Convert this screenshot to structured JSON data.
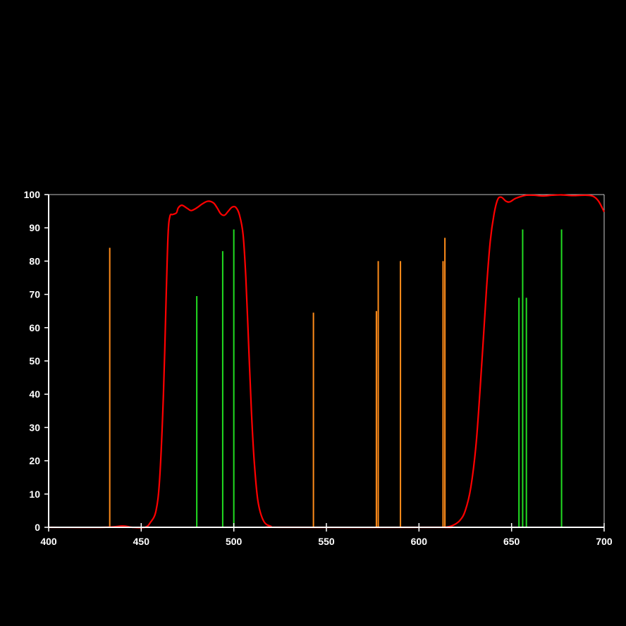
{
  "chart_data": {
    "type": "line",
    "title": "",
    "xlabel": "",
    "ylabel": "",
    "xlim": [
      400,
      700
    ],
    "ylim": [
      0,
      100
    ],
    "x_ticks": [
      "400",
      "450",
      "500",
      "550",
      "600",
      "650",
      "700"
    ],
    "y_ticks": [
      "0",
      "10",
      "20",
      "30",
      "40",
      "50",
      "60",
      "70",
      "80",
      "90",
      "100"
    ],
    "grid": false,
    "legend": "none",
    "colors": {
      "background": "#000000",
      "axes": "#ffffff",
      "transmission": "#ff0000",
      "orange_lines": "#ff8c1a",
      "green_lines": "#22dd22"
    },
    "series": [
      {
        "color": "red",
        "points": [
          [
            400,
            0
          ],
          [
            430,
            0
          ],
          [
            440,
            0.4
          ],
          [
            445,
            0
          ],
          [
            452,
            0
          ],
          [
            455,
            1.5
          ],
          [
            458,
            5
          ],
          [
            460,
            15
          ],
          [
            462,
            40
          ],
          [
            463.5,
            70
          ],
          [
            464.5,
            88
          ],
          [
            465.5,
            93.5
          ],
          [
            467,
            94
          ],
          [
            469,
            94.5
          ],
          [
            470,
            96
          ],
          [
            472,
            96.8
          ],
          [
            475,
            95.8
          ],
          [
            477,
            95.2
          ],
          [
            480,
            96
          ],
          [
            483,
            97.2
          ],
          [
            486,
            98
          ],
          [
            489,
            97.5
          ],
          [
            491,
            96
          ],
          [
            493,
            94.2
          ],
          [
            495,
            93.8
          ],
          [
            497,
            95
          ],
          [
            499,
            96.2
          ],
          [
            501,
            96.2
          ],
          [
            503,
            94
          ],
          [
            505,
            88
          ],
          [
            506.5,
            75
          ],
          [
            508,
            55
          ],
          [
            509.5,
            35
          ],
          [
            511,
            20
          ],
          [
            513,
            8
          ],
          [
            516,
            2
          ],
          [
            520,
            0.3
          ],
          [
            525,
            0
          ],
          [
            610,
            0
          ],
          [
            614,
            0
          ],
          [
            618,
            0.5
          ],
          [
            622,
            2
          ],
          [
            625,
            5
          ],
          [
            628,
            12
          ],
          [
            631,
            26
          ],
          [
            634,
            50
          ],
          [
            636.5,
            72
          ],
          [
            638.5,
            86
          ],
          [
            640.5,
            94
          ],
          [
            642.5,
            98.5
          ],
          [
            644.5,
            99.2
          ],
          [
            647,
            98
          ],
          [
            649,
            97.8
          ],
          [
            652,
            98.8
          ],
          [
            655,
            99.4
          ],
          [
            658,
            99.8
          ],
          [
            662,
            99.8
          ],
          [
            667,
            99.6
          ],
          [
            672,
            99.8
          ],
          [
            677,
            99.9
          ],
          [
            683,
            99.7
          ],
          [
            690,
            99.8
          ],
          [
            694,
            99.5
          ],
          [
            697,
            98
          ],
          [
            700,
            94.8
          ]
        ]
      }
    ],
    "vertical_lines": [
      {
        "x": 433,
        "y": 84,
        "color": "orange"
      },
      {
        "x": 543,
        "y": 64.5,
        "color": "orange"
      },
      {
        "x": 577,
        "y": 65,
        "color": "orange"
      },
      {
        "x": 578,
        "y": 80,
        "color": "orange"
      },
      {
        "x": 590,
        "y": 80,
        "color": "orange"
      },
      {
        "x": 613,
        "y": 80,
        "color": "orange"
      },
      {
        "x": 614,
        "y": 87,
        "color": "orange"
      },
      {
        "x": 480,
        "y": 69.5,
        "color": "green"
      },
      {
        "x": 494,
        "y": 83,
        "color": "green"
      },
      {
        "x": 500,
        "y": 89.5,
        "color": "green"
      },
      {
        "x": 654,
        "y": 69,
        "color": "green"
      },
      {
        "x": 656,
        "y": 89.5,
        "color": "green"
      },
      {
        "x": 658,
        "y": 69,
        "color": "green"
      },
      {
        "x": 677,
        "y": 89.5,
        "color": "green"
      }
    ]
  }
}
